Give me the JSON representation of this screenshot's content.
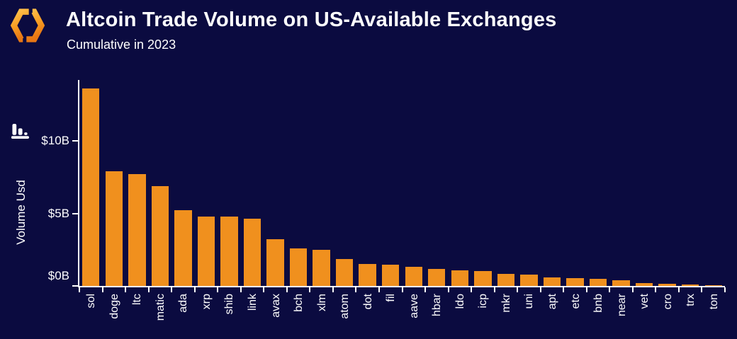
{
  "header": {
    "title": "Altcoin Trade Volume on US-Available Exchanges",
    "subtitle": "Cumulative in 2023"
  },
  "icons": {
    "logo": "brand-hexagon-logo",
    "y_axis": "bar-chart-icon"
  },
  "chart_data": {
    "type": "bar",
    "title": "Altcoin Trade Volume on US-Available Exchanges",
    "subtitle": "Cumulative in 2023",
    "ylabel": "Volume Usd",
    "xlabel": "",
    "unit": "USD billions",
    "categories": [
      "sol",
      "doge",
      "ltc",
      "matic",
      "ada",
      "xrp",
      "shib",
      "link",
      "avax",
      "bch",
      "xlm",
      "atom",
      "dot",
      "fil",
      "aave",
      "hbar",
      "ldo",
      "icp",
      "mkr",
      "uni",
      "apt",
      "etc",
      "bnb",
      "near",
      "vet",
      "cro",
      "trx",
      "ton"
    ],
    "values": [
      13.6,
      7.9,
      7.7,
      6.9,
      5.2,
      4.8,
      4.78,
      4.65,
      3.2,
      2.6,
      2.5,
      1.85,
      1.5,
      1.45,
      1.3,
      1.15,
      1.05,
      1.03,
      0.85,
      0.8,
      0.6,
      0.52,
      0.48,
      0.38,
      0.22,
      0.17,
      0.1,
      0.03
    ],
    "yticks": [
      {
        "label": "$0B",
        "value": 0
      },
      {
        "label": "$5B",
        "value": 5
      },
      {
        "label": "$10B",
        "value": 10
      }
    ],
    "ylim": [
      0,
      14.2
    ],
    "grid": false,
    "legend": null,
    "colors": {
      "bar": "#F0901E",
      "background": "#0B0B40",
      "axis": "#FFFFFF",
      "text": "#FFFFFF"
    }
  }
}
